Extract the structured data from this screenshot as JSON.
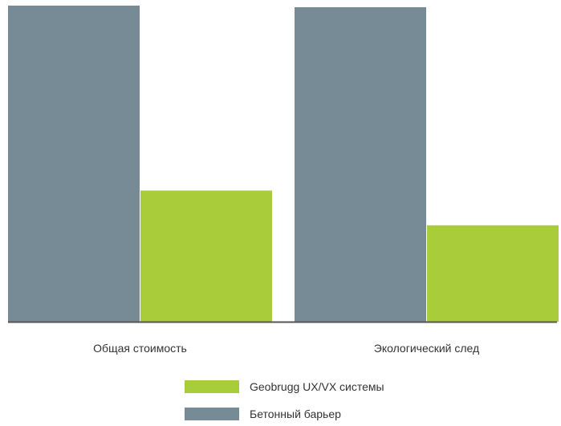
{
  "chart_data": {
    "type": "bar",
    "title": "",
    "xlabel": "",
    "ylabel": "",
    "categories": [
      "Общая стоимость",
      "Экологический след"
    ],
    "series": [
      {
        "name": "Бетонный барьер",
        "color": "#768b96",
        "values": [
          100,
          99.5
        ]
      },
      {
        "name": "Geobrugg UX/VX системы",
        "color": "#a8cc3a",
        "values": [
          41.5,
          30.5
        ]
      }
    ],
    "ylim": [
      0,
      100
    ],
    "grid": false,
    "y_axis_visible": false,
    "legend_position": "bottom-center",
    "legend_order": [
      "Geobrugg UX/VX системы",
      "Бетонный барьер"
    ],
    "axis_color": "#555555",
    "label_color": "#333333"
  }
}
